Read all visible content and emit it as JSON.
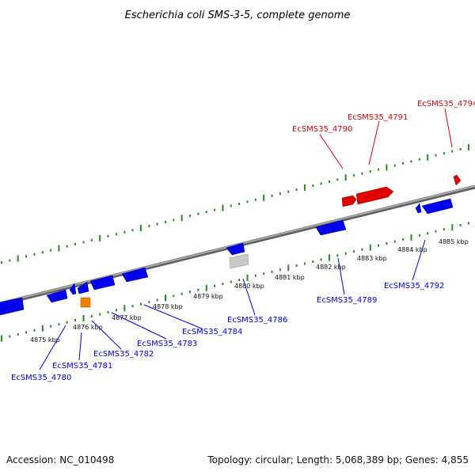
{
  "title": "Escherichia coli SMS-3-5, complete genome",
  "footer": {
    "accession": "Accession: NC_010498",
    "summary": "Topology: circular; Length: 5,068,389 bp; Genes: 4,855"
  },
  "colors": {
    "forward_gene": "#e00000",
    "reverse_gene": "#0000ee",
    "pseudo_gene": "#c8c8c8",
    "rna_gene": "#f08000",
    "tick": "#228b22",
    "backbone": "#808080"
  },
  "kbp_labels": [
    "4875 kbp",
    "4876 kbp",
    "4877 kbp",
    "4878 kbp",
    "4879 kbp",
    "4880 kbp",
    "4881 kbp",
    "4882 kbp",
    "4883 kbp",
    "4884 kbp",
    "4885 kbp"
  ],
  "gene_labels": {
    "forward": [
      "EcSMS35_4790",
      "EcSMS35_4791",
      "EcSMS35_4794"
    ],
    "reverse": [
      "EcSMS35_4780",
      "EcSMS35_4781",
      "EcSMS35_4782",
      "EcSMS35_4783",
      "EcSMS35_4784",
      "EcSMS35_4786",
      "EcSMS35_4789",
      "EcSMS35_4792"
    ]
  }
}
